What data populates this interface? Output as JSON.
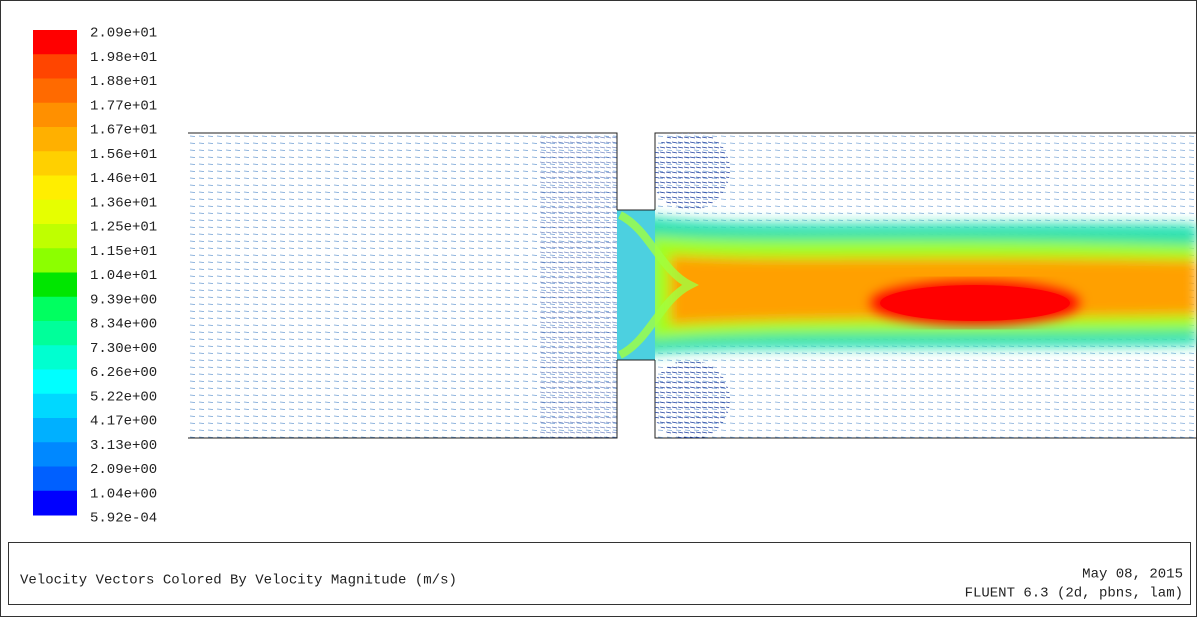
{
  "legend": {
    "labels": [
      "2.09e+01",
      "1.98e+01",
      "1.88e+01",
      "1.77e+01",
      "1.67e+01",
      "1.56e+01",
      "1.46e+01",
      "1.36e+01",
      "1.25e+01",
      "1.15e+01",
      "1.04e+01",
      "9.39e+00",
      "8.34e+00",
      "7.30e+00",
      "6.26e+00",
      "5.22e+00",
      "4.17e+00",
      "3.13e+00",
      "2.09e+00",
      "1.04e+00",
      "5.92e-04"
    ],
    "colors": [
      "#ff0000",
      "#ff4500",
      "#ff6a00",
      "#ff9000",
      "#ffb000",
      "#ffd000",
      "#ffee00",
      "#e6ff00",
      "#bfff00",
      "#8cff00",
      "#00e600",
      "#00ff60",
      "#00ff9a",
      "#00ffd0",
      "#00ffff",
      "#00d8ff",
      "#00b0ff",
      "#0088ff",
      "#0060ff",
      "#0000ff"
    ]
  },
  "footer": {
    "title": "Velocity Vectors Colored By Velocity Magnitude (m/s)",
    "date": "May 08, 2015",
    "solver": "FLUENT 6.3 (2d, pbns, lam)"
  }
}
